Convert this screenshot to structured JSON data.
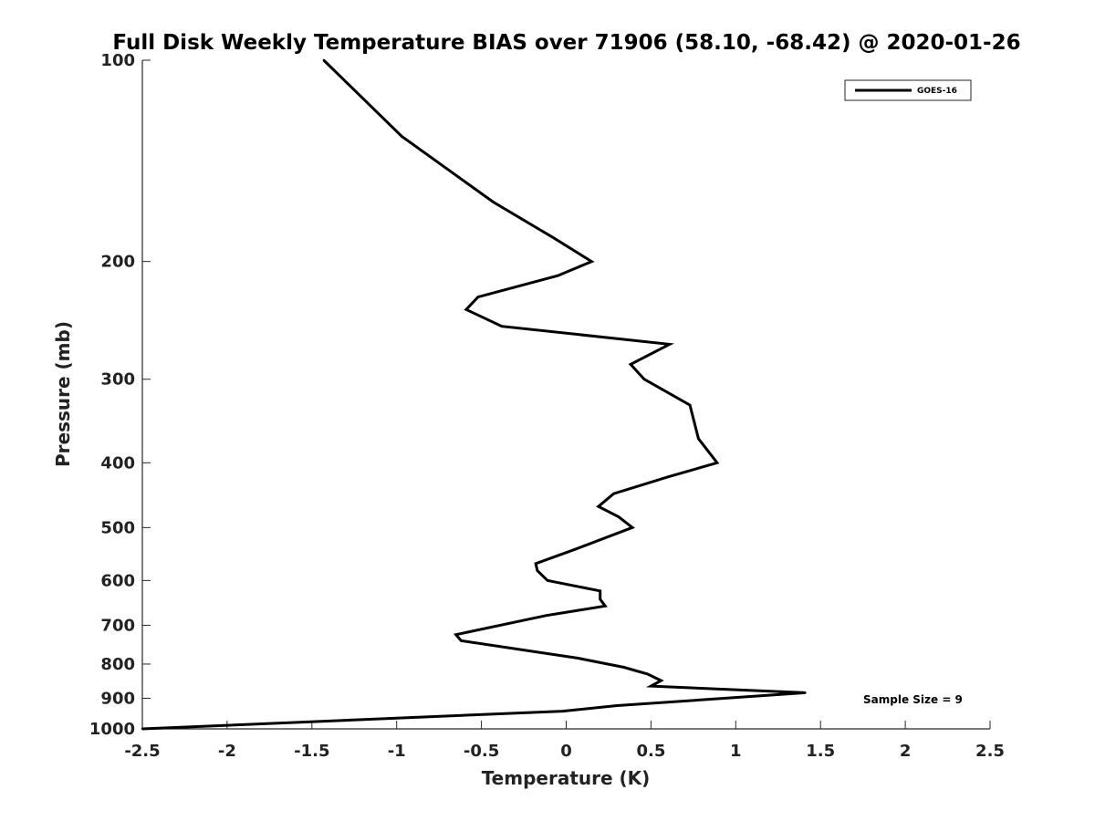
{
  "chart_data": {
    "type": "line",
    "title": "Full Disk Weekly Temperature BIAS over 71906 (58.10, -68.42) @ 2020-01-26",
    "xlabel": "Temperature (K)",
    "ylabel": "Pressure (mb)",
    "xlim": [
      -2.5,
      2.5
    ],
    "ylim": [
      1000,
      100
    ],
    "y_scale": "log",
    "grid": false,
    "legend_position": "top-right",
    "x_ticks": [
      "-2.5",
      "-2",
      "-1.5",
      "-1",
      "-0.5",
      "0",
      "0.5",
      "1",
      "1.5",
      "2",
      "2.5"
    ],
    "x_tick_values": [
      -2.5,
      -2,
      -1.5,
      -1,
      -0.5,
      0,
      0.5,
      1,
      1.5,
      2,
      2.5
    ],
    "y_ticks": [
      "100",
      "200",
      "300",
      "400",
      "500",
      "600",
      "700",
      "800",
      "900",
      "1000"
    ],
    "y_tick_values": [
      100,
      200,
      300,
      400,
      500,
      600,
      700,
      800,
      900,
      1000
    ],
    "annotation": "Sample Size = 9",
    "series": [
      {
        "name": "GOES-16",
        "color": "#000000",
        "points": [
          {
            "x": -1.43,
            "y": 100
          },
          {
            "x": -0.97,
            "y": 130
          },
          {
            "x": -0.43,
            "y": 163
          },
          {
            "x": -0.08,
            "y": 184
          },
          {
            "x": 0.15,
            "y": 200
          },
          {
            "x": -0.05,
            "y": 210
          },
          {
            "x": -0.52,
            "y": 226
          },
          {
            "x": -0.59,
            "y": 236
          },
          {
            "x": -0.38,
            "y": 250
          },
          {
            "x": 0.61,
            "y": 266
          },
          {
            "x": 0.38,
            "y": 285
          },
          {
            "x": 0.46,
            "y": 300
          },
          {
            "x": 0.73,
            "y": 328
          },
          {
            "x": 0.78,
            "y": 368
          },
          {
            "x": 0.89,
            "y": 400
          },
          {
            "x": 0.6,
            "y": 420
          },
          {
            "x": 0.28,
            "y": 445
          },
          {
            "x": 0.19,
            "y": 465
          },
          {
            "x": 0.31,
            "y": 482
          },
          {
            "x": 0.39,
            "y": 500
          },
          {
            "x": 0.06,
            "y": 538
          },
          {
            "x": -0.18,
            "y": 566
          },
          {
            "x": -0.17,
            "y": 580
          },
          {
            "x": -0.11,
            "y": 600
          },
          {
            "x": 0.2,
            "y": 622
          },
          {
            "x": 0.2,
            "y": 640
          },
          {
            "x": 0.23,
            "y": 655
          },
          {
            "x": -0.12,
            "y": 677
          },
          {
            "x": -0.65,
            "y": 723
          },
          {
            "x": -0.62,
            "y": 738
          },
          {
            "x": 0.07,
            "y": 784
          },
          {
            "x": 0.34,
            "y": 809
          },
          {
            "x": 0.48,
            "y": 828
          },
          {
            "x": 0.56,
            "y": 847
          },
          {
            "x": 0.5,
            "y": 863
          },
          {
            "x": 1.41,
            "y": 883
          },
          {
            "x": 0.3,
            "y": 923
          },
          {
            "x": -0.02,
            "y": 941
          },
          {
            "x": -2.5,
            "y": 1000
          }
        ]
      }
    ]
  }
}
